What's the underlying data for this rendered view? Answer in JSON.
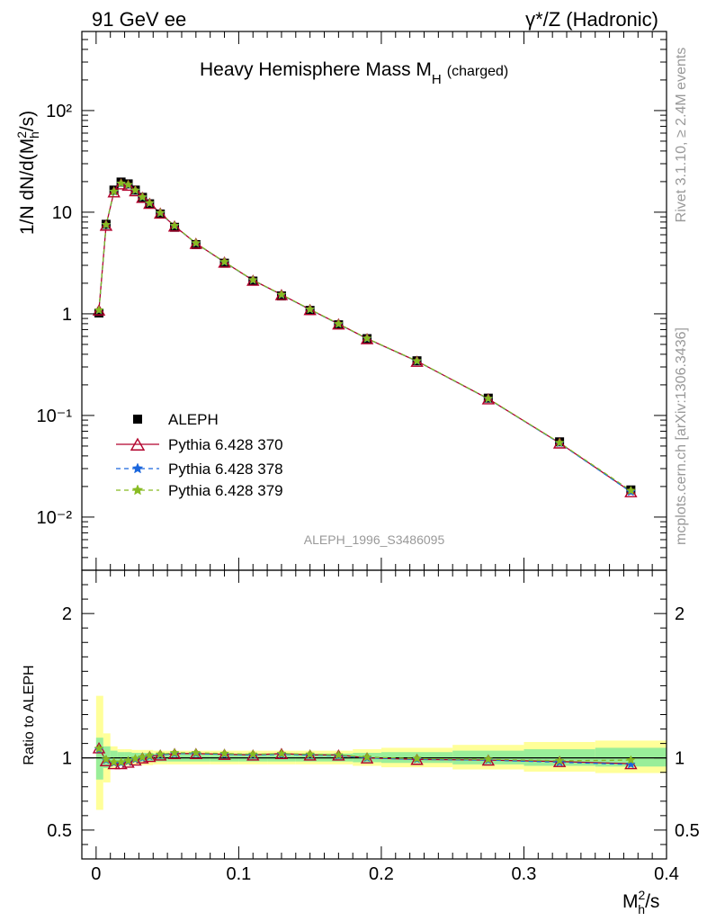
{
  "header": {
    "left": "91 GeV ee",
    "right": "γ*/Z (Hadronic)"
  },
  "side_text": {
    "rivet": "Rivet 3.1.10, ≥ 2.4M events",
    "mcplots": "mcplots.cern.ch [arXiv:1306.3436]"
  },
  "chart_data": {
    "type": "line",
    "title": "Heavy Hemisphere Mass M",
    "title_sub": "H",
    "title_suffix": "(charged)",
    "analysis": "ALEPH_1996_S3486095",
    "ylabel": "1/N dN/d(M²h/s)",
    "xlabel": "M²h/s",
    "ratio_ylabel": "Ratio to ALEPH",
    "xlim": [
      -0.01,
      0.4
    ],
    "ylim": [
      0.003,
      600
    ],
    "yscale": "log",
    "ratio_ylim": [
      0.3,
      2.3
    ],
    "x_ticks": [
      "0",
      "0.1",
      "0.2",
      "0.3",
      "0.4"
    ],
    "y_ticks": [
      "10⁻²",
      "10⁻¹",
      "1",
      "10",
      "10²"
    ],
    "ratio_ticks": [
      "0.5",
      "1",
      "2"
    ],
    "legend_position": "middle-left",
    "x": [
      0.002,
      0.007,
      0.0125,
      0.0175,
      0.0225,
      0.0275,
      0.0325,
      0.0375,
      0.045,
      0.055,
      0.07,
      0.09,
      0.11,
      0.13,
      0.15,
      0.17,
      0.19,
      0.225,
      0.275,
      0.325,
      0.375
    ],
    "bin_edges": [
      0,
      0.005,
      0.01,
      0.015,
      0.02,
      0.025,
      0.03,
      0.035,
      0.04,
      0.05,
      0.06,
      0.08,
      0.1,
      0.12,
      0.14,
      0.16,
      0.18,
      0.2,
      0.25,
      0.3,
      0.35,
      0.4
    ],
    "series": [
      {
        "name": "ALEPH",
        "color": "#000000",
        "marker": "square",
        "values": [
          1.02,
          7.6,
          16.5,
          19.8,
          19.0,
          16.5,
          14.0,
          12.1,
          9.6,
          7.1,
          4.8,
          3.15,
          2.1,
          1.5,
          1.08,
          0.78,
          0.57,
          0.345,
          0.148,
          0.055,
          0.0185
        ]
      },
      {
        "name": "Pythia 6.428 370",
        "color": "#b2002c",
        "marker": "triangle",
        "dash": "none",
        "ratio": [
          1.07,
          0.98,
          0.96,
          0.96,
          0.97,
          0.985,
          1.0,
          1.01,
          1.02,
          1.03,
          1.03,
          1.025,
          1.02,
          1.03,
          1.02,
          1.02,
          1.0,
          0.99,
          0.985,
          0.975,
          0.96
        ]
      },
      {
        "name": "Pythia 6.428 378",
        "color": "#1a66dd",
        "marker": "star",
        "dash": "5,4",
        "ratio": [
          1.06,
          0.985,
          0.965,
          0.965,
          0.975,
          0.99,
          1.0,
          1.01,
          1.02,
          1.03,
          1.03,
          1.025,
          1.02,
          1.025,
          1.02,
          1.015,
          1.0,
          0.99,
          0.985,
          0.97,
          0.955
        ]
      },
      {
        "name": "Pythia 6.428 379",
        "color": "#88bb22",
        "marker": "star",
        "dash": "5,4",
        "ratio": [
          1.065,
          0.99,
          0.97,
          0.97,
          0.98,
          0.995,
          1.005,
          1.015,
          1.025,
          1.035,
          1.035,
          1.03,
          1.025,
          1.03,
          1.025,
          1.02,
          1.005,
          0.995,
          0.99,
          0.98,
          0.985
        ]
      }
    ],
    "ratio_band_inner": [
      [
        0.85,
        1.14
      ],
      [
        0.93,
        1.08
      ],
      [
        0.96,
        1.05
      ],
      [
        0.97,
        1.04
      ],
      [
        0.97,
        1.04
      ],
      [
        0.975,
        1.035
      ],
      [
        0.975,
        1.035
      ],
      [
        0.975,
        1.035
      ],
      [
        0.975,
        1.03
      ],
      [
        0.975,
        1.03
      ],
      [
        0.975,
        1.03
      ],
      [
        0.975,
        1.03
      ],
      [
        0.975,
        1.03
      ],
      [
        0.975,
        1.03
      ],
      [
        0.975,
        1.03
      ],
      [
        0.975,
        1.03
      ],
      [
        0.97,
        1.035
      ],
      [
        0.965,
        1.04
      ],
      [
        0.955,
        1.05
      ],
      [
        0.945,
        1.06
      ],
      [
        0.94,
        1.07
      ]
    ],
    "ratio_band_outer": [
      [
        0.64,
        1.43
      ],
      [
        0.83,
        1.17
      ],
      [
        0.93,
        1.08
      ],
      [
        0.945,
        1.06
      ],
      [
        0.945,
        1.06
      ],
      [
        0.95,
        1.055
      ],
      [
        0.95,
        1.055
      ],
      [
        0.95,
        1.055
      ],
      [
        0.955,
        1.05
      ],
      [
        0.955,
        1.05
      ],
      [
        0.955,
        1.05
      ],
      [
        0.955,
        1.05
      ],
      [
        0.955,
        1.05
      ],
      [
        0.955,
        1.05
      ],
      [
        0.955,
        1.05
      ],
      [
        0.955,
        1.05
      ],
      [
        0.945,
        1.06
      ],
      [
        0.935,
        1.07
      ],
      [
        0.92,
        1.09
      ],
      [
        0.905,
        1.11
      ],
      [
        0.895,
        1.12
      ]
    ]
  }
}
